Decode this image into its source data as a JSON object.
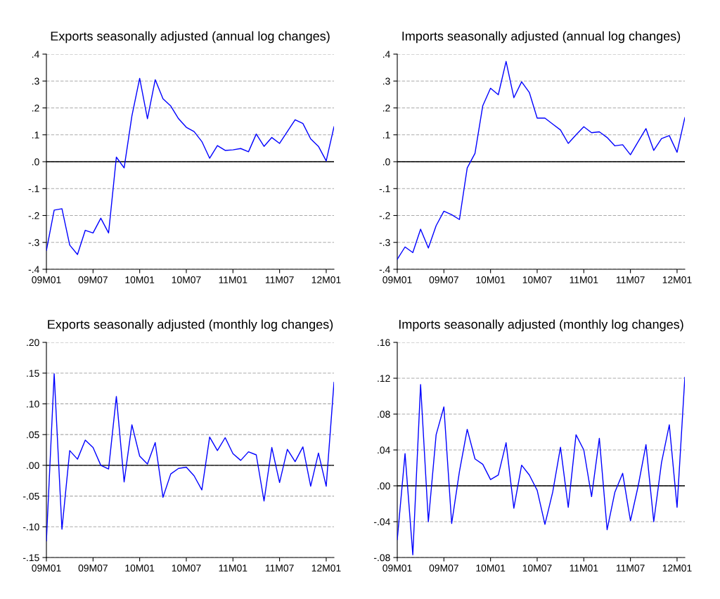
{
  "chart_data": [
    {
      "type": "line",
      "title": "Exports seasonally adjusted (annual log changes)",
      "categories": [
        "09M01",
        null,
        null,
        null,
        null,
        null,
        "09M07",
        null,
        null,
        null,
        null,
        null,
        "10M01",
        null,
        null,
        null,
        null,
        null,
        "10M07",
        null,
        null,
        null,
        null,
        null,
        "11M01",
        null,
        null,
        null,
        null,
        null,
        "11M07",
        null,
        null,
        null,
        null,
        null,
        "12M01",
        null
      ],
      "series": [
        {
          "color": "#0000ff",
          "values": [
            -0.33,
            -0.18,
            -0.175,
            -0.31,
            -0.345,
            -0.255,
            -0.265,
            -0.21,
            -0.265,
            0.017,
            -0.023,
            0.17,
            0.31,
            0.16,
            0.305,
            0.234,
            0.207,
            0.16,
            0.128,
            0.112,
            0.075,
            0.013,
            0.06,
            0.042,
            0.044,
            0.049,
            0.037,
            0.103,
            0.057,
            0.09,
            0.068,
            0.112,
            0.156,
            0.142,
            0.085,
            0.057,
            0.003,
            0.13
          ]
        }
      ],
      "ylim": [
        -0.4,
        0.4
      ],
      "yticks": [
        {
          "value": -0.4,
          "label": "-.4"
        },
        {
          "value": -0.3,
          "label": "-.3"
        },
        {
          "value": -0.2,
          "label": "-.2"
        },
        {
          "value": -0.1,
          "label": "-.1"
        },
        {
          "value": 0,
          "label": ".0"
        },
        {
          "value": 0.1,
          "label": ".1"
        },
        {
          "value": 0.2,
          "label": ".2"
        },
        {
          "value": 0.3,
          "label": ".3"
        },
        {
          "value": 0.4,
          "label": ".4"
        }
      ],
      "grid": "y",
      "line_style": "solid",
      "ref_lines": [
        {
          "axis": "y",
          "value": 0,
          "color": "#000000",
          "line_style": "solid"
        }
      ]
    },
    {
      "type": "line",
      "title": "Imports seasonally adjusted (annual log changes)",
      "categories": [
        "09M01",
        null,
        null,
        null,
        null,
        null,
        "09M07",
        null,
        null,
        null,
        null,
        null,
        "10M01",
        null,
        null,
        null,
        null,
        null,
        "10M07",
        null,
        null,
        null,
        null,
        null,
        "11M01",
        null,
        null,
        null,
        null,
        null,
        "11M07",
        null,
        null,
        null,
        null,
        null,
        "12M01",
        null
      ],
      "series": [
        {
          "color": "#0000ff",
          "values": [
            -0.363,
            -0.317,
            -0.338,
            -0.251,
            -0.321,
            -0.238,
            -0.184,
            -0.197,
            -0.215,
            -0.023,
            0.031,
            0.208,
            0.273,
            0.249,
            0.373,
            0.238,
            0.297,
            0.257,
            0.162,
            0.162,
            0.14,
            0.118,
            0.068,
            0.1,
            0.13,
            0.108,
            0.111,
            0.09,
            0.059,
            0.063,
            0.026,
            0.075,
            0.123,
            0.042,
            0.086,
            0.097,
            0.035,
            0.164
          ]
        }
      ],
      "ylim": [
        -0.4,
        0.4
      ],
      "yticks": [
        {
          "value": -0.4,
          "label": "-.4"
        },
        {
          "value": -0.3,
          "label": "-.3"
        },
        {
          "value": -0.2,
          "label": "-.2"
        },
        {
          "value": -0.1,
          "label": "-.1"
        },
        {
          "value": 0,
          "label": ".0"
        },
        {
          "value": 0.1,
          "label": ".1"
        },
        {
          "value": 0.2,
          "label": ".2"
        },
        {
          "value": 0.3,
          "label": ".3"
        },
        {
          "value": 0.4,
          "label": ".4"
        }
      ],
      "grid": "y",
      "line_style": "solid",
      "ref_lines": [
        {
          "axis": "y",
          "value": 0,
          "color": "#000000",
          "line_style": "solid"
        }
      ]
    },
    {
      "type": "line",
      "title": "Exports seasonally adjusted (monthly log changes)",
      "categories": [
        "09M01",
        null,
        null,
        null,
        null,
        null,
        "09M07",
        null,
        null,
        null,
        null,
        null,
        "10M01",
        null,
        null,
        null,
        null,
        null,
        "10M07",
        null,
        null,
        null,
        null,
        null,
        "11M01",
        null,
        null,
        null,
        null,
        null,
        "11M07",
        null,
        null,
        null,
        null,
        null,
        "12M01",
        null
      ],
      "series": [
        {
          "color": "#0000ff",
          "values": [
            -0.123,
            0.149,
            -0.104,
            0.024,
            0.01,
            0.041,
            0.029,
            0.0,
            -0.006,
            0.112,
            -0.027,
            0.066,
            0.015,
            0.002,
            0.037,
            -0.052,
            -0.014,
            -0.005,
            -0.003,
            -0.017,
            -0.04,
            0.046,
            0.024,
            0.045,
            0.019,
            0.008,
            0.022,
            0.017,
            -0.058,
            0.029,
            -0.028,
            0.026,
            0.006,
            0.03,
            -0.034,
            0.02,
            -0.034,
            0.135
          ]
        }
      ],
      "ylim": [
        -0.15,
        0.2
      ],
      "yticks": [
        {
          "value": -0.15,
          "label": "-.15"
        },
        {
          "value": -0.1,
          "label": "-.10"
        },
        {
          "value": -0.05,
          "label": "-.05"
        },
        {
          "value": 0,
          "label": ".00"
        },
        {
          "value": 0.05,
          "label": ".05"
        },
        {
          "value": 0.1,
          "label": ".10"
        },
        {
          "value": 0.15,
          "label": ".15"
        },
        {
          "value": 0.2,
          "label": ".20"
        }
      ],
      "grid": "y",
      "line_style": "solid",
      "ref_lines": [
        {
          "axis": "y",
          "value": 0,
          "color": "#000000",
          "line_style": "solid"
        }
      ]
    },
    {
      "type": "line",
      "title": "Imports seasonally adjusted (monthly log changes)",
      "categories": [
        "09M01",
        null,
        null,
        null,
        null,
        null,
        "09M07",
        null,
        null,
        null,
        null,
        null,
        "10M01",
        null,
        null,
        null,
        null,
        null,
        "10M07",
        null,
        null,
        null,
        null,
        null,
        "11M01",
        null,
        null,
        null,
        null,
        null,
        "11M07",
        null,
        null,
        null,
        null,
        null,
        "12M01",
        null
      ],
      "series": [
        {
          "color": "#0000ff",
          "values": [
            -0.06,
            0.036,
            -0.077,
            0.113,
            -0.04,
            0.057,
            0.088,
            -0.042,
            0.016,
            0.063,
            0.03,
            0.024,
            0.007,
            0.012,
            0.048,
            -0.025,
            0.023,
            0.012,
            -0.005,
            -0.043,
            -0.007,
            0.043,
            -0.024,
            0.057,
            0.04,
            -0.012,
            0.053,
            -0.049,
            -0.007,
            0.014,
            -0.039,
            0.0,
            0.046,
            -0.04,
            0.026,
            0.068,
            -0.024,
            0.121
          ]
        }
      ],
      "ylim": [
        -0.08,
        0.16
      ],
      "yticks": [
        {
          "value": -0.08,
          "label": "-.08"
        },
        {
          "value": -0.04,
          "label": "-.04"
        },
        {
          "value": 0,
          "label": ".00"
        },
        {
          "value": 0.04,
          "label": ".04"
        },
        {
          "value": 0.08,
          "label": ".08"
        },
        {
          "value": 0.12,
          "label": ".12"
        },
        {
          "value": 0.16,
          "label": ".16"
        }
      ],
      "grid": "y",
      "line_style": "solid",
      "ref_lines": [
        {
          "axis": "y",
          "value": 0,
          "color": "#000000",
          "line_style": "solid"
        }
      ]
    }
  ]
}
